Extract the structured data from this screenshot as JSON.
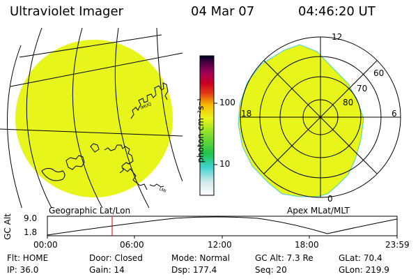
{
  "header": {
    "title": "Ultraviolet Imager",
    "date": "04 Mar 07",
    "time": "04:46:20 UT"
  },
  "colorbar": {
    "label": "photon cm⁻²s⁻¹",
    "ticks": [
      "100",
      "10"
    ]
  },
  "geo_panel": {
    "caption": "Geographic Lat/Lon",
    "fill_color": "#e7f51a"
  },
  "apex_panel": {
    "caption": "Apex MLat/MLT",
    "mlt_labels": [
      "12",
      "18",
      "6",
      "0"
    ],
    "mlat_labels": [
      "60",
      "70",
      "80"
    ],
    "fill_color": "#e7f51a"
  },
  "altitude_plot": {
    "ylabel": "GC Alt",
    "y_ticks": [
      "9.0",
      "1.8"
    ],
    "x_ticks": [
      "00:00",
      "06:00",
      "12:00",
      "18:00",
      "23:59"
    ],
    "marker_color": "#cc0000"
  },
  "info": {
    "flt": "Flt: HOME",
    "door": "Door: Closed",
    "mode": "Mode: Normal",
    "gcalt": "GC Alt: 7.3 Re",
    "glat": "GLat:  70.4",
    "ip": "IP: 36.0",
    "gain": "Gain: 14",
    "dsp": "Dsp:   177.4",
    "seq": "Seq: 20",
    "glon": "GLon: 219.9"
  }
}
